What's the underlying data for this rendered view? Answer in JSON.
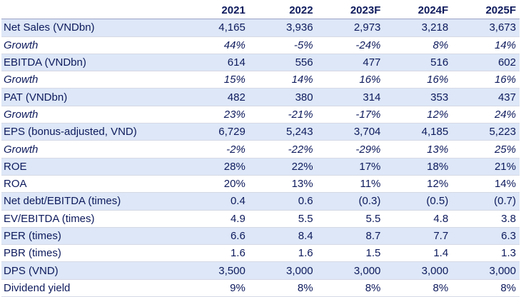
{
  "table": {
    "header": [
      "",
      "2021",
      "2022",
      "2023F",
      "2024F",
      "2025F"
    ],
    "rows": [
      {
        "label": "Net Sales (VNDbn)",
        "values": [
          "4,165",
          "3,936",
          "2,973",
          "3,218",
          "3,673"
        ],
        "shaded": true,
        "italic": false
      },
      {
        "label": "Growth",
        "values": [
          "44%",
          "-5%",
          "-24%",
          "8%",
          "14%"
        ],
        "shaded": false,
        "italic": true
      },
      {
        "label": "EBITDA (VNDbn)",
        "values": [
          "614",
          "556",
          "477",
          "516",
          "602"
        ],
        "shaded": true,
        "italic": false
      },
      {
        "label": "Growth",
        "values": [
          "15%",
          "14%",
          "16%",
          "16%",
          "16%"
        ],
        "shaded": false,
        "italic": true
      },
      {
        "label": "PAT (VNDbn)",
        "values": [
          "482",
          "380",
          "314",
          "353",
          "437"
        ],
        "shaded": true,
        "italic": false
      },
      {
        "label": "Growth",
        "values": [
          "23%",
          "-21%",
          "-17%",
          "12%",
          "24%"
        ],
        "shaded": false,
        "italic": true
      },
      {
        "label": "EPS (bonus-adjusted, VND)",
        "values": [
          "6,729",
          "5,243",
          "3,704",
          "4,185",
          "5,223"
        ],
        "shaded": true,
        "italic": false
      },
      {
        "label": "Growth",
        "values": [
          "-2%",
          "-22%",
          "-29%",
          "13%",
          "25%"
        ],
        "shaded": false,
        "italic": true
      },
      {
        "label": "ROE",
        "values": [
          "28%",
          "22%",
          "17%",
          "18%",
          "21%"
        ],
        "shaded": true,
        "italic": false
      },
      {
        "label": "ROA",
        "values": [
          "20%",
          "13%",
          "11%",
          "12%",
          "14%"
        ],
        "shaded": false,
        "italic": false
      },
      {
        "label": "Net debt/EBITDA (times)",
        "values": [
          "0.4",
          "0.6",
          "(0.3)",
          "(0.5)",
          "(0.7)"
        ],
        "shaded": true,
        "italic": false
      },
      {
        "label": "EV/EBITDA (times)",
        "values": [
          "4.9",
          "5.5",
          "5.5",
          "4.8",
          "3.8"
        ],
        "shaded": false,
        "italic": false
      },
      {
        "label": "PER (times)",
        "values": [
          "6.6",
          "8.4",
          "8.7",
          "7.7",
          "6.3"
        ],
        "shaded": true,
        "italic": false
      },
      {
        "label": "PBR (times)",
        "values": [
          "1.6",
          "1.6",
          "1.5",
          "1.4",
          "1.3"
        ],
        "shaded": false,
        "italic": false
      },
      {
        "label": "DPS (VND)",
        "values": [
          "3,500",
          "3,000",
          "3,000",
          "3,000",
          "3,000"
        ],
        "shaded": true,
        "italic": false
      },
      {
        "label": "Dividend yield",
        "values": [
          "9%",
          "8%",
          "8%",
          "8%",
          "8%"
        ],
        "shaded": false,
        "italic": false
      }
    ],
    "colors": {
      "text": "#0d1a5c",
      "shaded_row": "#dde7f7",
      "row_divider": "#d6d9e6"
    }
  }
}
